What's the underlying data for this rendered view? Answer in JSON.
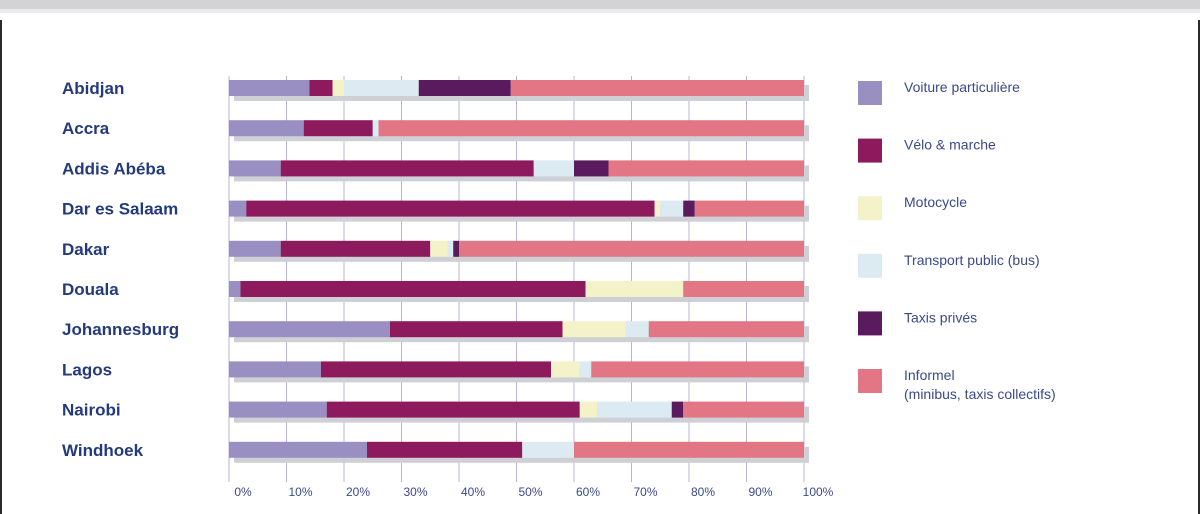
{
  "colors": {
    "grid": "#b7b3d8",
    "shadow": "#cfcfd6",
    "city_label": "#233a7d",
    "text": "#3a4a8a"
  },
  "chart_data": {
    "type": "bar",
    "stacked": true,
    "orientation": "horizontal",
    "categories": [
      "Abidjan",
      "Accra",
      "Addis Abéba",
      "Dar es Salaam",
      "Dakar",
      "Douala",
      "Johannesburg",
      "Lagos",
      "Nairobi",
      "Windhoek"
    ],
    "series": [
      {
        "name": "Voiture particulière",
        "color": "#9a8fc3",
        "values": [
          14,
          13,
          9,
          3,
          9,
          2,
          28,
          16,
          17,
          24
        ]
      },
      {
        "name": "Vélo & marche",
        "color": "#8e1a5e",
        "values": [
          4,
          12,
          44,
          71,
          26,
          60,
          30,
          40,
          44,
          27
        ]
      },
      {
        "name": "Motocycle",
        "color": "#f3f2c9",
        "values": [
          2,
          0,
          0,
          1,
          3,
          17,
          11,
          5,
          3,
          0
        ]
      },
      {
        "name": "Transport public (bus)",
        "color": "#dcebf2",
        "values": [
          13,
          1,
          7,
          4,
          1,
          0,
          4,
          2,
          13,
          9
        ]
      },
      {
        "name": "Taxis privés",
        "color": "#5a1a5e",
        "values": [
          16,
          0,
          6,
          2,
          1,
          0,
          0,
          0,
          2,
          0
        ]
      },
      {
        "name": "Informel\n(minibus, taxis collectifs)",
        "color": "#e27684",
        "values": [
          51,
          74,
          34,
          19,
          60,
          21,
          27,
          37,
          21,
          40
        ]
      }
    ],
    "xlim": [
      0,
      100
    ],
    "xticks": [
      "0%",
      "10%",
      "20%",
      "30%",
      "40%",
      "50%",
      "60%",
      "70%",
      "80%",
      "90%",
      "100%"
    ],
    "grid": true,
    "legend": "right"
  }
}
